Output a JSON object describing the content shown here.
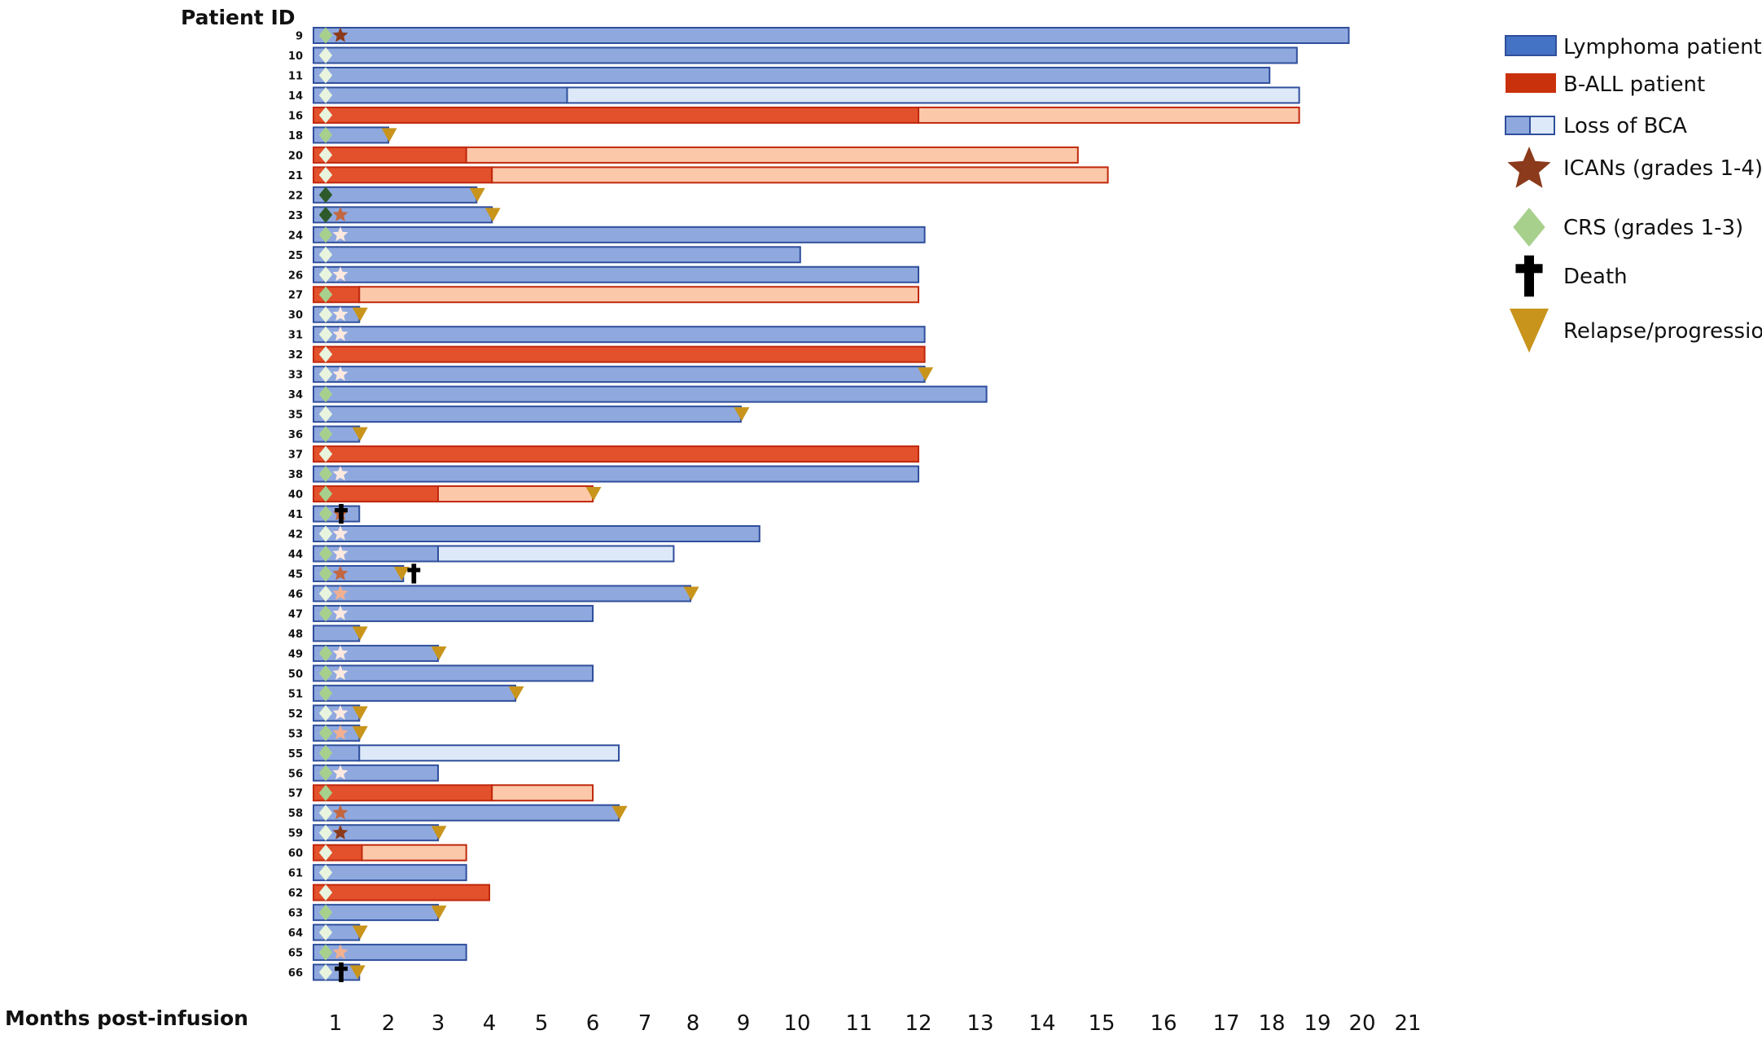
{
  "chart_data": {
    "type": "swimmer",
    "title": "",
    "ylabel": "Patient ID",
    "xlabel": "Months post-infusion",
    "x_ticks": [
      "1",
      "2",
      "3",
      "4",
      "5",
      "6",
      "7",
      "8",
      "9",
      "10",
      "11",
      "12",
      "13",
      "14",
      "15",
      "16",
      "17",
      "18",
      "19",
      "20",
      "21"
    ],
    "colors": {
      "lymphoma": "#8fa9df",
      "lymphoma_edge": "#2f4f9b",
      "lymphoma_legend": "#4472c4",
      "lymphoma_loss": "#dde9f8",
      "ball": "#e3502c",
      "ball_edge": "#c0280c",
      "ball_legend": "#c9310d",
      "ball_loss": "#fbc8aa",
      "crs_major": "#a8d08d",
      "crs_minor": "#e8f4dd",
      "crs_dark": "#2d5a2a",
      "ican_major": "#8b3a1b",
      "ican_mid": "#c4663f",
      "ican_light": "#f2b090",
      "ican_minor": "#fde9e0",
      "relapse": "#c8941c",
      "death": "#000000"
    },
    "patients": [
      {
        "id": "9",
        "type": "lymphoma",
        "end": 19.7,
        "crs": "major",
        "ican": "major"
      },
      {
        "id": "10",
        "type": "lymphoma",
        "end": 18.55,
        "crs": "minor"
      },
      {
        "id": "11",
        "type": "lymphoma",
        "end": 17.95,
        "crs": "minor"
      },
      {
        "id": "14",
        "type": "lymphoma",
        "end": 18.6,
        "loss": 5.5,
        "crs": "minor"
      },
      {
        "id": "16",
        "type": "ball",
        "end": 18.6,
        "loss": 12.0,
        "crs": "minor"
      },
      {
        "id": "18",
        "type": "lymphoma",
        "end": 2.0,
        "crs": "major",
        "relapse": true
      },
      {
        "id": "20",
        "type": "ball",
        "end": 14.6,
        "loss": 3.55,
        "crs": "minor"
      },
      {
        "id": "21",
        "type": "ball",
        "end": 15.1,
        "loss": 4.05,
        "crs": "minor"
      },
      {
        "id": "22",
        "type": "lymphoma",
        "end": 3.75,
        "crs": "dark",
        "relapse": true
      },
      {
        "id": "23",
        "type": "lymphoma",
        "end": 4.05,
        "crs": "dark",
        "ican": "mid",
        "relapse": true
      },
      {
        "id": "24",
        "type": "lymphoma",
        "end": 12.1,
        "crs": "major",
        "ican": "minor"
      },
      {
        "id": "25",
        "type": "lymphoma",
        "end": 10.05,
        "crs": "minor"
      },
      {
        "id": "26",
        "type": "lymphoma",
        "end": 12.0,
        "crs": "minor",
        "ican": "minor"
      },
      {
        "id": "27",
        "type": "ball",
        "end": 12.0,
        "loss": 1.45,
        "crs": "major"
      },
      {
        "id": "30",
        "type": "lymphoma",
        "end": 1.45,
        "crs": "minor",
        "ican": "minor",
        "relapse": true
      },
      {
        "id": "31",
        "type": "lymphoma",
        "end": 12.1,
        "crs": "minor",
        "ican": "minor"
      },
      {
        "id": "32",
        "type": "ball",
        "end": 12.1,
        "crs": "minor"
      },
      {
        "id": "33",
        "type": "lymphoma",
        "end": 12.1,
        "crs": "minor",
        "ican": "minor",
        "relapse": true
      },
      {
        "id": "34",
        "type": "lymphoma",
        "end": 13.1,
        "crs": "major"
      },
      {
        "id": "35",
        "type": "lymphoma",
        "end": 8.95,
        "crs": "minor",
        "relapse": true
      },
      {
        "id": "36",
        "type": "lymphoma",
        "end": 1.45,
        "crs": "major",
        "relapse": true
      },
      {
        "id": "37",
        "type": "ball",
        "end": 12.0,
        "crs": "minor"
      },
      {
        "id": "38",
        "type": "lymphoma",
        "end": 12.0,
        "crs": "major",
        "ican": "minor"
      },
      {
        "id": "40",
        "type": "ball",
        "end": 6.0,
        "loss": 3.0,
        "crs": "major",
        "relapse": true
      },
      {
        "id": "41",
        "type": "lymphoma",
        "end": 1.45,
        "crs": "major",
        "ican": "mid",
        "death": true
      },
      {
        "id": "42",
        "type": "lymphoma",
        "end": 9.3,
        "crs": "minor",
        "ican": "minor"
      },
      {
        "id": "44",
        "type": "lymphoma",
        "end": 7.6,
        "loss": 3.0,
        "crs": "major",
        "ican": "minor"
      },
      {
        "id": "45",
        "type": "lymphoma",
        "end": 2.3,
        "crs": "major",
        "ican": "mid",
        "relapse": true,
        "death": true
      },
      {
        "id": "46",
        "type": "lymphoma",
        "end": 7.95,
        "crs": "minor",
        "ican": "light",
        "relapse": true
      },
      {
        "id": "47",
        "type": "lymphoma",
        "end": 6.0,
        "crs": "major",
        "ican": "minor"
      },
      {
        "id": "48",
        "type": "lymphoma",
        "end": 1.45,
        "relapse": true
      },
      {
        "id": "49",
        "type": "lymphoma",
        "end": 3.0,
        "crs": "major",
        "ican": "minor",
        "relapse": true
      },
      {
        "id": "50",
        "type": "lymphoma",
        "end": 6.0,
        "crs": "major",
        "ican": "minor"
      },
      {
        "id": "51",
        "type": "lymphoma",
        "end": 4.5,
        "crs": "major",
        "relapse": true
      },
      {
        "id": "52",
        "type": "lymphoma",
        "end": 1.45,
        "crs": "minor",
        "ican": "minor",
        "relapse": true
      },
      {
        "id": "53",
        "type": "lymphoma",
        "end": 1.45,
        "crs": "major",
        "ican": "light",
        "relapse": true
      },
      {
        "id": "55",
        "type": "lymphoma",
        "end": 6.5,
        "loss": 1.45,
        "crs": "major"
      },
      {
        "id": "56",
        "type": "lymphoma",
        "end": 3.0,
        "crs": "major",
        "ican": "minor"
      },
      {
        "id": "57",
        "type": "ball",
        "end": 6.0,
        "loss": 4.05,
        "crs": "major"
      },
      {
        "id": "58",
        "type": "lymphoma",
        "end": 6.5,
        "crs": "minor",
        "ican": "mid",
        "relapse": true
      },
      {
        "id": "59",
        "type": "lymphoma",
        "end": 3.0,
        "crs": "minor",
        "ican": "major",
        "relapse": true
      },
      {
        "id": "60",
        "type": "ball",
        "end": 3.55,
        "loss": 1.5,
        "crs": "minor"
      },
      {
        "id": "61",
        "type": "lymphoma",
        "end": 3.55,
        "crs": "minor"
      },
      {
        "id": "62",
        "type": "ball",
        "end": 4.0,
        "crs": "minor"
      },
      {
        "id": "63",
        "type": "lymphoma",
        "end": 3.0,
        "crs": "major",
        "relapse": true
      },
      {
        "id": "64",
        "type": "lymphoma",
        "end": 1.45,
        "crs": "minor",
        "relapse": true
      },
      {
        "id": "65",
        "type": "lymphoma",
        "end": 3.55,
        "crs": "major",
        "ican": "light"
      },
      {
        "id": "66",
        "type": "lymphoma",
        "end": 1.45,
        "crs": "minor",
        "relapse": true,
        "death": true
      }
    ],
    "legend": [
      {
        "key": "lymphoma",
        "label": "Lymphoma patient"
      },
      {
        "key": "ball",
        "label": "B-ALL patient"
      },
      {
        "key": "loss",
        "label": "Loss of BCA"
      },
      {
        "key": "ican",
        "label": "ICANs (grades 1-4)"
      },
      {
        "key": "crs",
        "label": "CRS (grades 1-3)"
      },
      {
        "key": "death",
        "label": "Death"
      },
      {
        "key": "relapse",
        "label": "Relapse/progression"
      }
    ]
  }
}
